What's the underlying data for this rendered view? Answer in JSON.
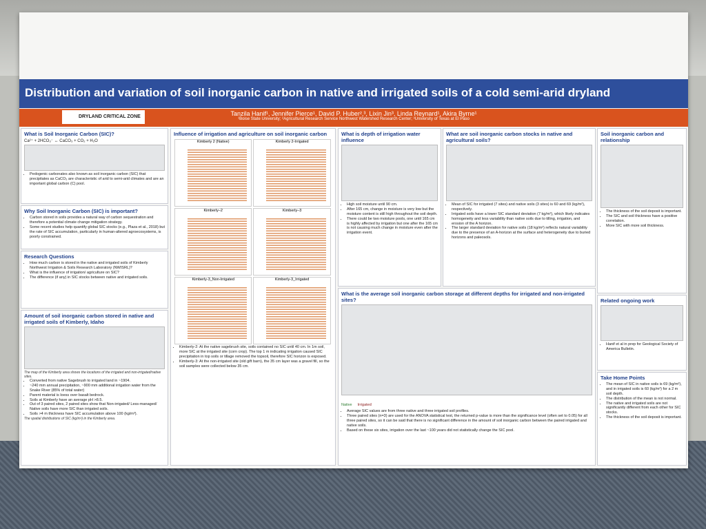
{
  "header": {
    "title": "Distribution and variation of soil inorganic carbon in native and irrigated soils of a cold semi-arid dryland",
    "logo": "DRYLAND CRITICAL ZONE",
    "authors": "Tanzila Hanif¹, Jennifer Pierce¹, David P. Huber²,³, Lixin Jin³, Linda Reynard¹, Akira Byrne¹",
    "affiliations": "¹Boise State University; ²Agricultural Research Service Northwest Watershed Research Center; ³University of Texas at El Paso"
  },
  "sections": [
    {
      "heading": "What is Soil Inorganic Carbon (SIC)?",
      "bullets": [
        "Pedogenic carbonates also known as soil inorganic carbon (SIC) that precipitates as CaCO₃ are characteristic of arid to semi-arid climates and are an important global carbon (C) pool."
      ],
      "equation": "Ca²⁺ + 2HCO₃⁻ ↔ CaCO₃ + CO₂ + H₂O"
    },
    {
      "heading": "Why Soil Inorganic Carbon (SIC) is important?",
      "bullets": [
        "Carbon stored in soils provides a natural way of carbon sequestration and therefore a potential climate change mitigation strategy.",
        "Some recent studies help quantify global SIC stocks (e.g., Plaza et al., 2018) but the rate of SIC accumulation, particularly in human-altered agroecosystems, is poorly constrained."
      ]
    },
    {
      "heading": "Research Questions",
      "bullets": [
        "How much carbon is stored in the native and irrigated soils of Kimberly Northwest Irrigation & Soils Research Laboratory (NWISRL)?",
        "What is the influence of irrigation/ agriculture on SIC?",
        "The difference (if any) in SIC stocks between native and irrigated soils."
      ]
    },
    {
      "heading": "Amount of soil inorganic carbon stored in native and irrigated soils of Kimberly, Idaho",
      "bullets": [
        "Converted from native Sagebrush to irrigated land in ~1904.",
        "~240 mm annual precipitation, ~900 mm additional irrigation water from the Snake River (85% of total water)",
        "Parent material is loess over basalt bedrock.",
        "Soils at Kimberly have an average pH >8.5.",
        "Out of 3 paired sites, 2 paired sites show that Non-irrigated/ Less-managed/ Native soils have more SIC than irrigated soils.",
        "Soils >4 m thickness have SIC accumulation above 100 (kg/m³)."
      ],
      "captions": [
        "The map of the Kimberly area shows the locations of the irrigated and non-irrigated/native sites.",
        "The spatial distributions of SIC (kg/m³) in the Kimberly area."
      ]
    },
    {
      "heading": "Influence of irrigation and agriculture on soil inorganic carbon",
      "panels": [
        "Kimberly 2 (Native)",
        "Kimberly 2-Irrigated",
        "Kimberly–2",
        "Kimberly–3",
        "Kimberly-3_Non-Irrigated",
        "Kimberly-3_Irrigated"
      ],
      "bullets": [
        "Kimberly-2: At the native sagebrush site, soils contained no SIC until 40 cm. In 1m soil, more SIC at the irrigated site (corn crop). The top 1 m indicating irrigation caused SIC precipitation in top soils or tillage removed the topsoil, therefore SIC horizon is exposed.",
        "Kimberly-3: At the non-irrigated site (old gift barn), the 35 cm layer was a gravel fill, so the soil samples were collected below 35 cm."
      ]
    },
    {
      "heading": "What is depth of irrigation water influence",
      "bullets": [
        "High soil moisture until 90 cm.",
        "After 165 cm, change in moisture is very low but the moisture content is still high throughout the soil depth.",
        "There could be two moisture pools, one until 165 cm is highly affected by irrigation but one after the 165 cm is not causing much change in moisture even after the irrigation event."
      ]
    },
    {
      "heading": "What are soil inorganic carbon stocks in native and agricultural soils?",
      "bullets": [
        "Mean of SIC for irrigated (7 sites) and native soils (3 sites) is 60 and 69 (kg/m²), respectively.",
        "Irrigated soils have a lower SIC standard deviation (7 kg/m²), which likely indicates homogeneity and less variability than native soils due to tilling, irrigation, and erosion of the A horizon.",
        "The larger standard deviation for native soils (18 kg/m²) reflects natural variability due to the presence of an A-horizon at the surface and heterogeneity due to buried horizons and paleosols."
      ]
    },
    {
      "heading": "What is the average soil inorganic carbon storage at different depths for irrigated and non-irrigated sites?",
      "legend": [
        "Native",
        "Irrigated"
      ],
      "bullets": [
        "Average SIC values are from three native and three irrigated soil profiles.",
        "Three paired sites (n=3) are used for the ANOVA statistical test, the returned p-value is more than the significance level (often set to 0.05) for all three paired sites, so it can be said that there is no significant difference in the amount of soil inorganic carbon between the paired irrigated and native soils.",
        "Based on these six sites, irrigation over the last ~100 years did not statistically change the SIC pool."
      ]
    },
    {
      "heading": "Soil inorganic carbon and relationship",
      "bullets": [
        "The thickness of the soil deposit is important.",
        "The SIC and soil thickness have a positive correlation.",
        "More SIC with more soil thickness."
      ]
    },
    {
      "heading": "Related ongoing work",
      "bullets": [
        "Hanif et al in prep for Geological Society of America Bulletin."
      ]
    },
    {
      "heading": "Take Home Points",
      "bullets": [
        "The mean of SIC in native soils is 69 (kg/m²), and in irrigated soils is 60 (kg/m²) for a 2 m soil depth.",
        "The distribution of the mean is not normal.",
        "The native and irrigated soils are not significantly different from each other for SIC stocks.",
        "The thickness of the soil deposit is important."
      ]
    }
  ]
}
